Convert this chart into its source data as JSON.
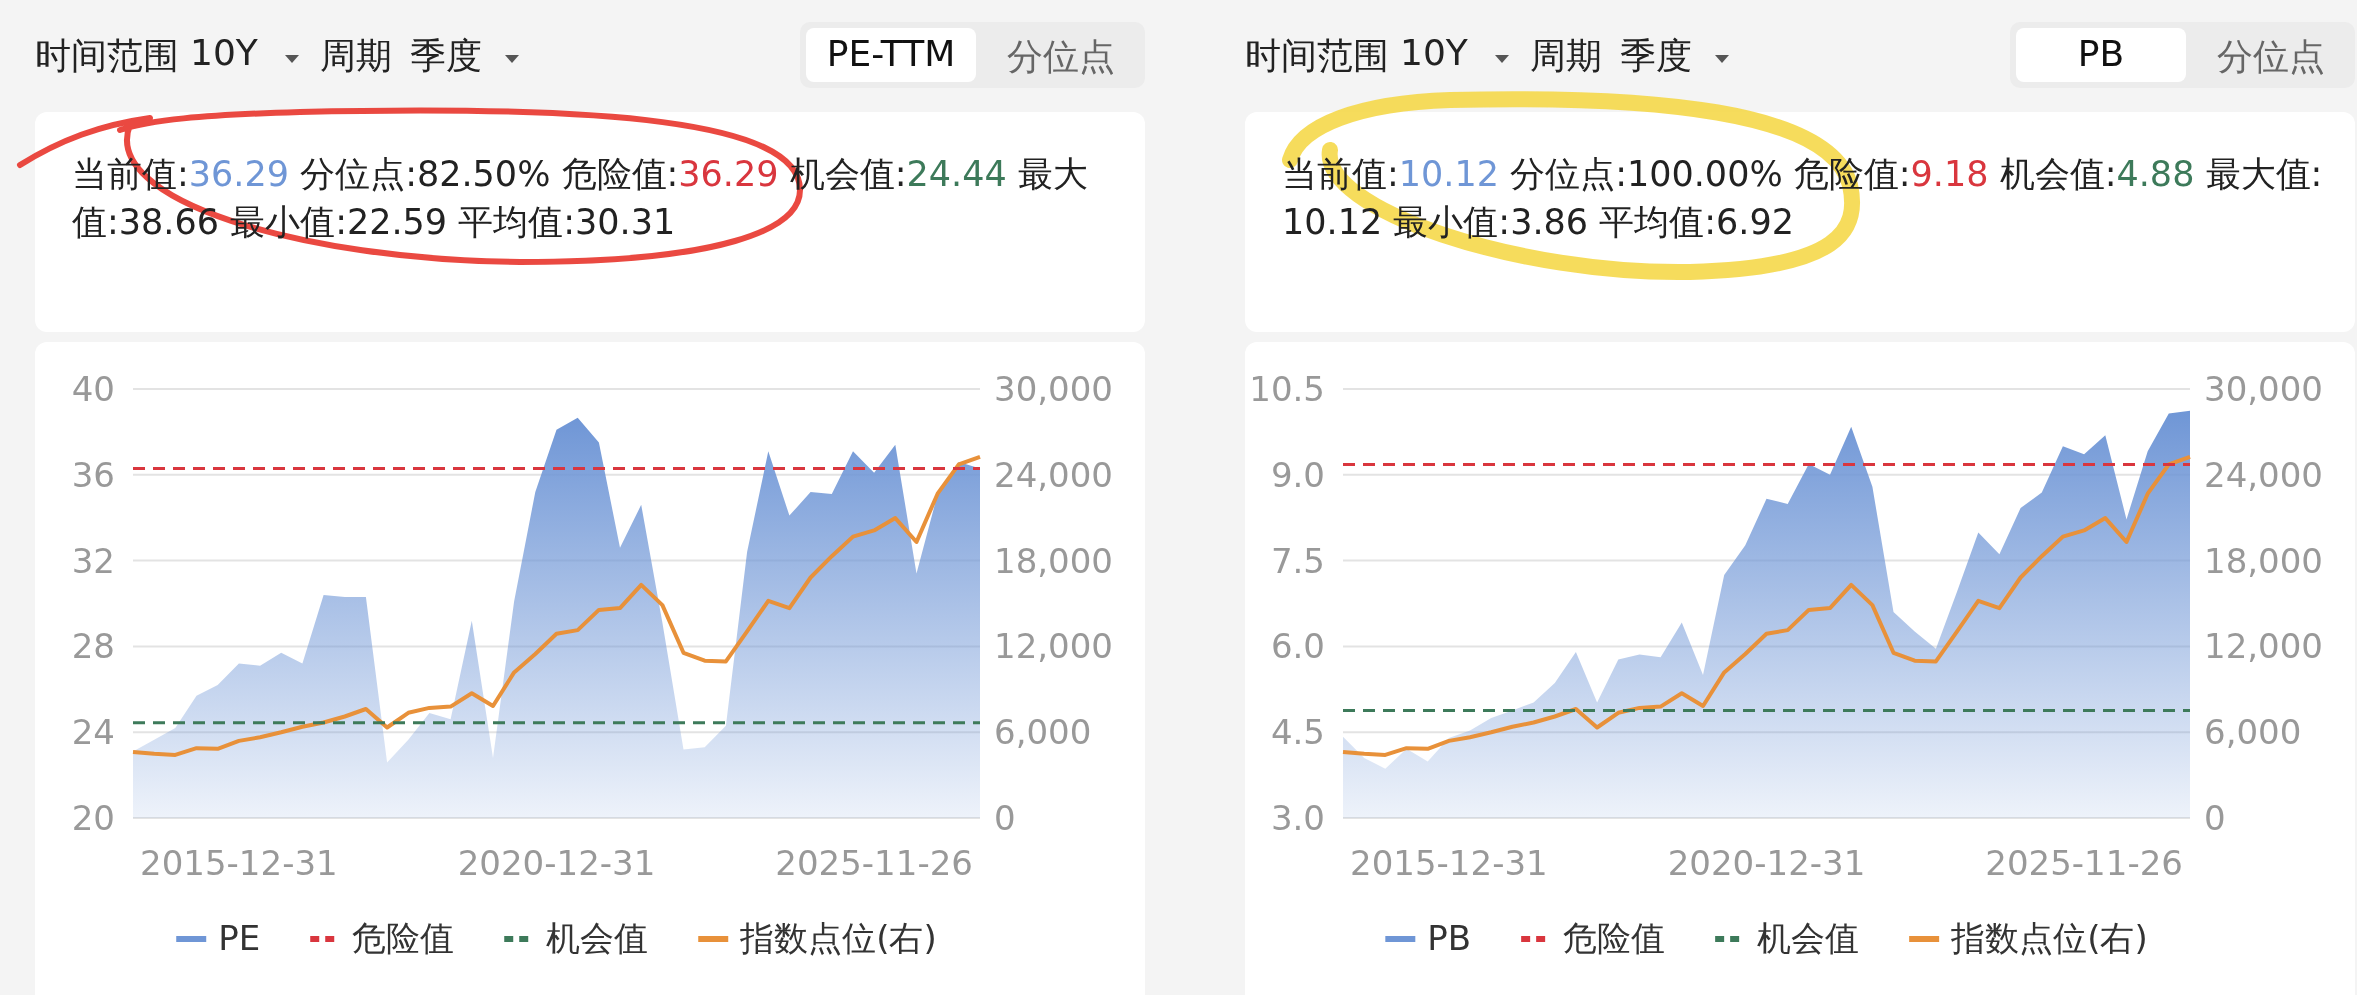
{
  "chart_data": [
    {
      "type": "area",
      "categories": [
        null,
        null,
        null,
        null,
        null,
        "2015-12-31",
        null,
        null,
        null,
        null,
        null,
        null,
        null,
        null,
        null,
        null,
        null,
        null,
        null,
        null,
        "2020-12-31",
        null,
        null,
        null,
        null,
        null,
        null,
        null,
        null,
        null,
        null,
        null,
        null,
        null,
        null,
        "2025-11-26",
        null,
        null,
        null,
        null,
        null
      ],
      "series": [
        {
          "name": "PE",
          "color": "#6f96d6",
          "values": [
            23.1,
            23.65,
            24.2,
            25.7,
            26.2,
            27.2,
            27.1,
            27.7,
            27.2,
            30.4,
            30.3,
            30.3,
            22.59,
            23.65,
            24.9,
            24.6,
            29.2,
            22.8,
            30.1,
            35.2,
            38.1,
            38.66,
            37.5,
            32.6,
            34.6,
            29.1,
            23.2,
            23.3,
            24.3,
            32.4,
            37.1,
            34.1,
            35.2,
            35.1,
            37.1,
            36.1,
            37.4,
            31.4,
            35.1,
            36.6,
            36.29
          ]
        },
        {
          "name": "指数点位(右)",
          "type": "line",
          "axis": "y2",
          "color": "#e8913a",
          "values": [
            4620,
            4490,
            4410,
            4880,
            4840,
            5390,
            5650,
            5990,
            6380,
            6680,
            7100,
            7620,
            6330,
            7360,
            7700,
            7790,
            8730,
            7830,
            10180,
            11470,
            12880,
            13140,
            14550,
            14680,
            16300,
            14890,
            11550,
            11000,
            10950,
            13050,
            15190,
            14680,
            16820,
            18310,
            19680,
            20110,
            20970,
            19300,
            22680,
            24730,
            25250
          ]
        }
      ],
      "ylim": [
        20,
        40
      ],
      "yticks": [
        20,
        24,
        28,
        32,
        36,
        40
      ],
      "y2lim": [
        0,
        30000
      ],
      "y2ticks": [
        0,
        {
          "value": 6000,
          "label": "6,000"
        },
        {
          "value": 12000,
          "label": "12,000"
        },
        {
          "value": 18000,
          "label": "18,000"
        },
        {
          "value": 24000,
          "label": "24,000"
        },
        {
          "value": 30000,
          "label": "30,000"
        }
      ],
      "ref_lines": [
        {
          "axis": "y",
          "value": 36.29,
          "label": "危险值",
          "color": "#d9363e",
          "line_style": "dashed"
        },
        {
          "axis": "y",
          "value": 24.44,
          "label": "机会值",
          "color": "#3d7a5a",
          "line_style": "dashed"
        }
      ],
      "grid": "y",
      "legend": "bottom",
      "marker": "none",
      "annotations": [
        "时间范围",
        "10Y",
        "周期",
        "季度",
        "PE-TTM",
        "分位点",
        "当前值:36.29",
        "分位点:82.50%",
        "危险值:36.29",
        "机会值:24.44",
        "最大值:38.66",
        "最小值:22.59",
        "平均值:30.31"
      ]
    },
    {
      "type": "area",
      "categories": [
        null,
        null,
        null,
        null,
        null,
        "2015-12-31",
        null,
        null,
        null,
        null,
        null,
        null,
        null,
        null,
        null,
        null,
        null,
        null,
        null,
        null,
        "2020-12-31",
        null,
        null,
        null,
        null,
        null,
        null,
        null,
        null,
        null,
        null,
        null,
        null,
        null,
        null,
        "2025-11-26",
        null,
        null,
        null,
        null,
        null
      ],
      "series": [
        {
          "name": "PB",
          "color": "#6f96d6",
          "values": [
            4.42,
            4.05,
            3.86,
            4.21,
            3.99,
            4.4,
            4.53,
            4.75,
            4.88,
            5.02,
            5.36,
            5.9,
            5.02,
            5.77,
            5.86,
            5.81,
            6.42,
            5.5,
            7.25,
            7.77,
            8.58,
            8.49,
            9.19,
            9.0,
            9.84,
            8.79,
            6.6,
            6.26,
            5.96,
            6.96,
            7.99,
            7.61,
            8.42,
            8.69,
            9.5,
            9.36,
            9.69,
            8.22,
            9.41,
            10.07,
            10.12
          ]
        },
        {
          "name": "指数点位(右)",
          "type": "line",
          "axis": "y2",
          "color": "#e8913a",
          "values": [
            4620,
            4490,
            4410,
            4880,
            4840,
            5390,
            5650,
            5990,
            6380,
            6680,
            7100,
            7620,
            6330,
            7360,
            7700,
            7790,
            8730,
            7830,
            10180,
            11470,
            12880,
            13140,
            14550,
            14680,
            16300,
            14890,
            11550,
            11000,
            10950,
            13050,
            15190,
            14680,
            16820,
            18310,
            19680,
            20110,
            20970,
            19300,
            22680,
            24730,
            25250
          ]
        }
      ],
      "ylim": [
        3,
        10.5
      ],
      "yticks": [
        {
          "value": 3,
          "label": "3.0"
        },
        {
          "value": 4.5,
          "label": "4.5"
        },
        {
          "value": 6,
          "label": "6.0"
        },
        {
          "value": 7.5,
          "label": "7.5"
        },
        {
          "value": 9,
          "label": "9.0"
        },
        {
          "value": 10.5,
          "label": "10.5"
        }
      ],
      "y2lim": [
        0,
        30000
      ],
      "y2ticks": [
        0,
        {
          "value": 6000,
          "label": "6,000"
        },
        {
          "value": 12000,
          "label": "12,000"
        },
        {
          "value": 18000,
          "label": "18,000"
        },
        {
          "value": 24000,
          "label": "24,000"
        },
        {
          "value": 30000,
          "label": "30,000"
        }
      ],
      "ref_lines": [
        {
          "axis": "y",
          "value": 9.18,
          "label": "危险值",
          "color": "#d9363e",
          "line_style": "dashed"
        },
        {
          "axis": "y",
          "value": 4.88,
          "label": "机会值",
          "color": "#3d7a5a",
          "line_style": "dashed"
        }
      ],
      "grid": "y",
      "legend": "bottom",
      "marker": "none",
      "annotations": [
        "时间范围",
        "10Y",
        "周期",
        "季度",
        "PB",
        "分位点",
        "当前值:10.12",
        "分位点:100.00%",
        "危险值:9.18",
        "机会值:4.88",
        "最大值:10.12",
        "最小值:3.86",
        "平均值:6.92"
      ]
    }
  ]
}
